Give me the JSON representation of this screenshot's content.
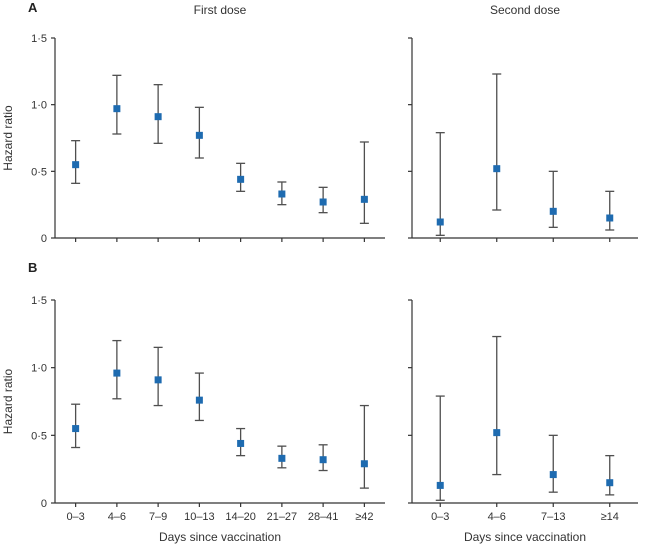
{
  "figure": {
    "panel_a_label": "A",
    "panel_b_label": "B",
    "column_titles": {
      "first": "First dose",
      "second": "Second dose"
    }
  },
  "style": {
    "marker_color": "#1e6bb0",
    "errorbar_color": "#4f4f4f",
    "axis_color": "#333333",
    "text_color": "#333333"
  },
  "chart_data": [
    {
      "id": "a_first",
      "type": "scatter",
      "panel": "A",
      "title": "First dose",
      "categories": [
        "0–3",
        "4–6",
        "7–9",
        "10–13",
        "14–20",
        "21–27",
        "28–41",
        "≥42"
      ],
      "values": [
        0.55,
        0.97,
        0.91,
        0.77,
        0.44,
        0.33,
        0.27,
        0.29
      ],
      "ci_low": [
        0.41,
        0.78,
        0.71,
        0.6,
        0.35,
        0.25,
        0.19,
        0.11
      ],
      "ci_high": [
        0.73,
        1.22,
        1.15,
        0.98,
        0.56,
        0.42,
        0.38,
        0.72
      ],
      "ylim": [
        0,
        1.5
      ],
      "yticks": [
        0,
        0.5,
        1.0,
        1.5
      ],
      "ytick_labels": [
        "0",
        "0·5",
        "1·0",
        "1·5"
      ],
      "ylabel": "Hazard ratio",
      "xlabel": "",
      "show_x_tick_labels": false,
      "show_y_tick_labels": true,
      "grid": false,
      "legend": false
    },
    {
      "id": "a_second",
      "type": "scatter",
      "panel": "A",
      "title": "Second dose",
      "categories": [
        "0–3",
        "4–6",
        "7–13",
        "≥14"
      ],
      "values": [
        0.12,
        0.52,
        0.2,
        0.15
      ],
      "ci_low": [
        0.02,
        0.21,
        0.08,
        0.06
      ],
      "ci_high": [
        0.79,
        1.23,
        0.5,
        0.35
      ],
      "ylim": [
        0,
        1.5
      ],
      "yticks": [
        0,
        0.5,
        1.0,
        1.5
      ],
      "ytick_labels": [
        "0",
        "0·5",
        "1·0",
        "1·5"
      ],
      "ylabel": "",
      "xlabel": "",
      "show_x_tick_labels": false,
      "show_y_tick_labels": false,
      "grid": false,
      "legend": false
    },
    {
      "id": "b_first",
      "type": "scatter",
      "panel": "B",
      "title": "First dose",
      "categories": [
        "0–3",
        "4–6",
        "7–9",
        "10–13",
        "14–20",
        "21–27",
        "28–41",
        "≥42"
      ],
      "values": [
        0.55,
        0.96,
        0.91,
        0.76,
        0.44,
        0.33,
        0.32,
        0.29
      ],
      "ci_low": [
        0.41,
        0.77,
        0.72,
        0.61,
        0.35,
        0.26,
        0.24,
        0.11
      ],
      "ci_high": [
        0.73,
        1.2,
        1.15,
        0.96,
        0.55,
        0.42,
        0.43,
        0.72
      ],
      "ylim": [
        0,
        1.5
      ],
      "yticks": [
        0,
        0.5,
        1.0,
        1.5
      ],
      "ytick_labels": [
        "0",
        "0·5",
        "1·0",
        "1·5"
      ],
      "ylabel": "Hazard ratio",
      "xlabel": "Days since vaccination",
      "show_x_tick_labels": true,
      "show_y_tick_labels": true,
      "grid": false,
      "legend": false
    },
    {
      "id": "b_second",
      "type": "scatter",
      "panel": "B",
      "title": "Second dose",
      "categories": [
        "0–3",
        "4–6",
        "7–13",
        "≥14"
      ],
      "values": [
        0.13,
        0.52,
        0.21,
        0.15
      ],
      "ci_low": [
        0.02,
        0.21,
        0.08,
        0.06
      ],
      "ci_high": [
        0.79,
        1.23,
        0.5,
        0.35
      ],
      "ylim": [
        0,
        1.5
      ],
      "yticks": [
        0,
        0.5,
        1.0,
        1.5
      ],
      "ytick_labels": [
        "0",
        "0·5",
        "1·0",
        "1·5"
      ],
      "ylabel": "",
      "xlabel": "Days since vaccination",
      "show_x_tick_labels": true,
      "show_y_tick_labels": false,
      "grid": false,
      "legend": false
    }
  ]
}
